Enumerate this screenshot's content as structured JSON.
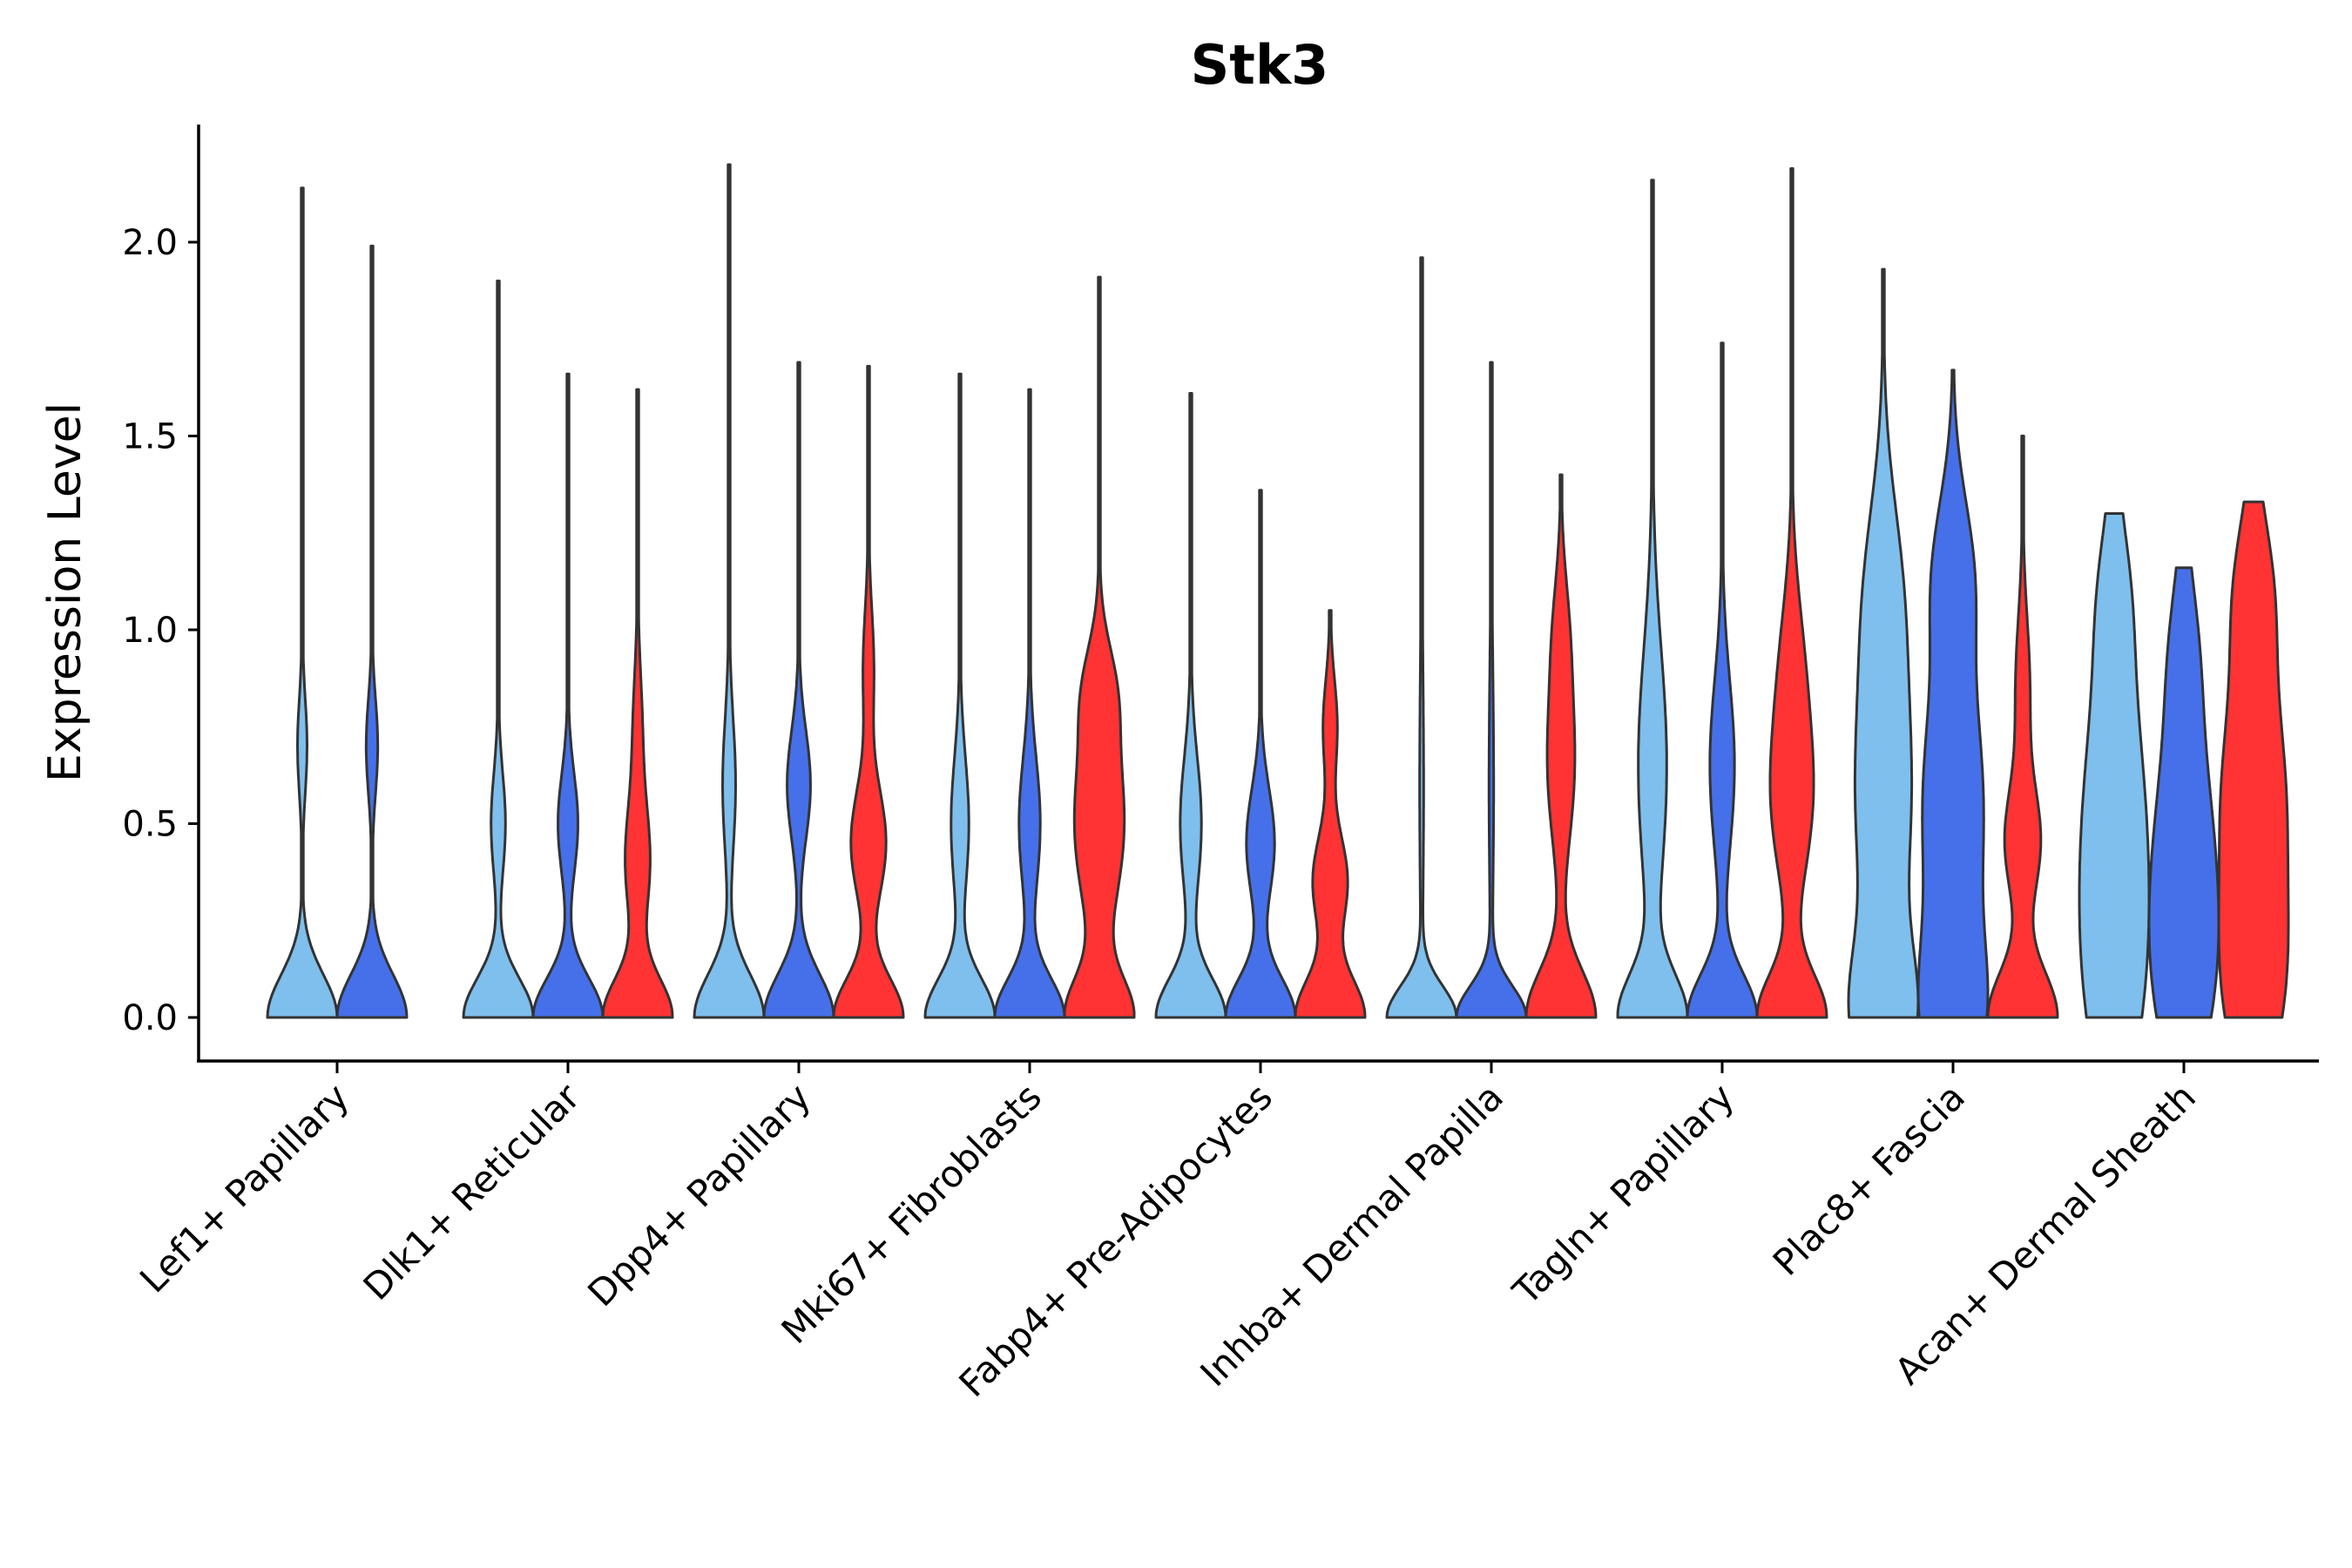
{
  "chart_data": {
    "type": "violin",
    "title": "Stk3",
    "xlabel": "",
    "ylabel": "Expression Level",
    "ylim": [
      -0.11,
      2.32
    ],
    "yticks": [
      0.0,
      0.5,
      1.0,
      1.5,
      2.0
    ],
    "ytick_labels": [
      "0.0",
      "0.5",
      "1.0",
      "1.5",
      "2.0"
    ],
    "grid": false,
    "legend": "none",
    "series_colors": [
      "#7fbfed",
      "#4570ea",
      "#ff3333"
    ],
    "categories": [
      "Lef1+ Papillary",
      "Dlk1+ Reticular",
      "Dpp4+ Papillary",
      "Mki67+ Fibroblasts",
      "Fabp4+ Pre-Adipocytes",
      "Inhba+ Dermal Papilla",
      "Tagln+ Papillary",
      "Plac8+ Fascia",
      "Acan+ Dermal Sheath"
    ],
    "groups": [
      {
        "category": "Lef1+ Papillary",
        "violins": [
          {
            "series": 0,
            "max": 2.14,
            "modes": [
              [
                0.0,
                1.0,
                0.11
              ],
              [
                0.7,
                0.13,
                0.12
              ]
            ]
          },
          {
            "series": 1,
            "max": 1.99,
            "modes": [
              [
                0.0,
                1.0,
                0.11
              ],
              [
                0.7,
                0.16,
                0.12
              ]
            ]
          }
        ]
      },
      {
        "category": "Dlk1+ Reticular",
        "violins": [
          {
            "series": 0,
            "max": 1.9,
            "modes": [
              [
                0.0,
                1.0,
                0.1
              ],
              [
                0.5,
                0.2,
                0.13
              ]
            ]
          },
          {
            "series": 1,
            "max": 1.66,
            "modes": [
              [
                0.0,
                1.0,
                0.1
              ],
              [
                0.5,
                0.28,
                0.13
              ]
            ]
          },
          {
            "series": 2,
            "max": 1.62,
            "modes": [
              [
                0.0,
                1.0,
                0.1
              ],
              [
                0.4,
                0.35,
                0.15
              ],
              [
                0.75,
                0.12,
                0.15
              ]
            ]
          }
        ]
      },
      {
        "category": "Dpp4+ Papillary",
        "violins": [
          {
            "series": 0,
            "max": 2.2,
            "modes": [
              [
                0.0,
                1.0,
                0.11
              ],
              [
                0.6,
                0.18,
                0.17
              ]
            ]
          },
          {
            "series": 1,
            "max": 1.69,
            "modes": [
              [
                0.0,
                1.0,
                0.11
              ],
              [
                0.6,
                0.33,
                0.14
              ]
            ]
          },
          {
            "series": 2,
            "max": 1.68,
            "modes": [
              [
                0.0,
                1.0,
                0.1
              ],
              [
                0.45,
                0.5,
                0.14
              ],
              [
                0.9,
                0.15,
                0.15
              ]
            ]
          }
        ]
      },
      {
        "category": "Mki67+ Fibroblasts",
        "violins": [
          {
            "series": 0,
            "max": 1.66,
            "modes": [
              [
                0.0,
                1.0,
                0.1
              ],
              [
                0.5,
                0.25,
                0.17
              ]
            ]
          },
          {
            "series": 1,
            "max": 1.62,
            "modes": [
              [
                0.0,
                1.0,
                0.1
              ],
              [
                0.5,
                0.3,
                0.17
              ]
            ]
          },
          {
            "series": 2,
            "max": 1.91,
            "modes": [
              [
                0.0,
                1.0,
                0.1
              ],
              [
                0.5,
                0.75,
                0.22
              ],
              [
                0.85,
                0.35,
                0.12
              ]
            ]
          }
        ]
      },
      {
        "category": "Fabp4+ Pre-Adipocytes",
        "violins": [
          {
            "series": 0,
            "max": 1.61,
            "modes": [
              [
                0.0,
                1.0,
                0.1
              ],
              [
                0.5,
                0.3,
                0.17
              ]
            ]
          },
          {
            "series": 1,
            "max": 1.36,
            "modes": [
              [
                0.0,
                1.0,
                0.1
              ],
              [
                0.45,
                0.4,
                0.14
              ]
            ]
          },
          {
            "series": 2,
            "max": 1.05,
            "modes": [
              [
                0.0,
                1.0,
                0.1
              ],
              [
                0.35,
                0.5,
                0.12
              ],
              [
                0.75,
                0.2,
                0.12
              ]
            ]
          }
        ]
      },
      {
        "category": "Inhba+ Dermal Papilla",
        "violins": [
          {
            "series": 0,
            "max": 1.96,
            "modes": [
              [
                0.0,
                1.0,
                0.08
              ],
              [
                0.6,
                0.05,
                0.3
              ]
            ]
          },
          {
            "series": 1,
            "max": 1.69,
            "modes": [
              [
                0.0,
                1.0,
                0.08
              ],
              [
                0.6,
                0.06,
                0.3
              ]
            ]
          },
          {
            "series": 2,
            "max": 1.4,
            "modes": [
              [
                0.0,
                1.0,
                0.12
              ],
              [
                0.65,
                0.38,
                0.2
              ],
              [
                1.0,
                0.18,
                0.15
              ]
            ]
          }
        ]
      },
      {
        "category": "Tagln+ Papillary",
        "violins": [
          {
            "series": 0,
            "max": 2.16,
            "modes": [
              [
                0.0,
                1.0,
                0.11
              ],
              [
                0.65,
                0.42,
                0.3
              ]
            ]
          },
          {
            "series": 1,
            "max": 1.74,
            "modes": [
              [
                0.0,
                1.0,
                0.11
              ],
              [
                0.65,
                0.35,
                0.22
              ]
            ]
          },
          {
            "series": 2,
            "max": 2.19,
            "modes": [
              [
                0.0,
                1.0,
                0.11
              ],
              [
                0.55,
                0.55,
                0.2
              ],
              [
                0.9,
                0.3,
                0.2
              ]
            ]
          }
        ]
      },
      {
        "category": "Plac8+ Fascia",
        "violins": [
          {
            "series": 0,
            "max": 1.93,
            "modes": [
              [
                0.0,
                1.0,
                0.18
              ],
              [
                0.55,
                0.9,
                0.3
              ],
              [
                1.1,
                0.55,
                0.25
              ]
            ]
          },
          {
            "series": 1,
            "max": 1.67,
            "modes": [
              [
                0.0,
                0.95,
                0.2
              ],
              [
                0.55,
                1.0,
                0.3
              ],
              [
                1.15,
                0.6,
                0.2
              ]
            ]
          },
          {
            "series": 2,
            "max": 1.5,
            "modes": [
              [
                0.0,
                1.0,
                0.12
              ],
              [
                0.45,
                0.5,
                0.14
              ],
              [
                0.85,
                0.2,
                0.18
              ]
            ]
          }
        ]
      },
      {
        "category": "Acan+ Dermal Sheath",
        "violins": [
          {
            "series": 0,
            "max": 1.3,
            "modes": [
              [
                0.1,
                1.0,
                0.3
              ],
              [
                0.6,
                0.9,
                0.3
              ],
              [
                1.1,
                0.45,
                0.2
              ]
            ]
          },
          {
            "series": 1,
            "max": 1.16,
            "modes": [
              [
                0.1,
                1.0,
                0.25
              ],
              [
                0.5,
                0.8,
                0.25
              ],
              [
                0.95,
                0.45,
                0.2
              ]
            ]
          },
          {
            "series": 2,
            "max": 1.33,
            "modes": [
              [
                0.1,
                1.0,
                0.25
              ],
              [
                0.6,
                0.95,
                0.25
              ],
              [
                1.1,
                0.6,
                0.2
              ]
            ]
          }
        ]
      }
    ]
  }
}
